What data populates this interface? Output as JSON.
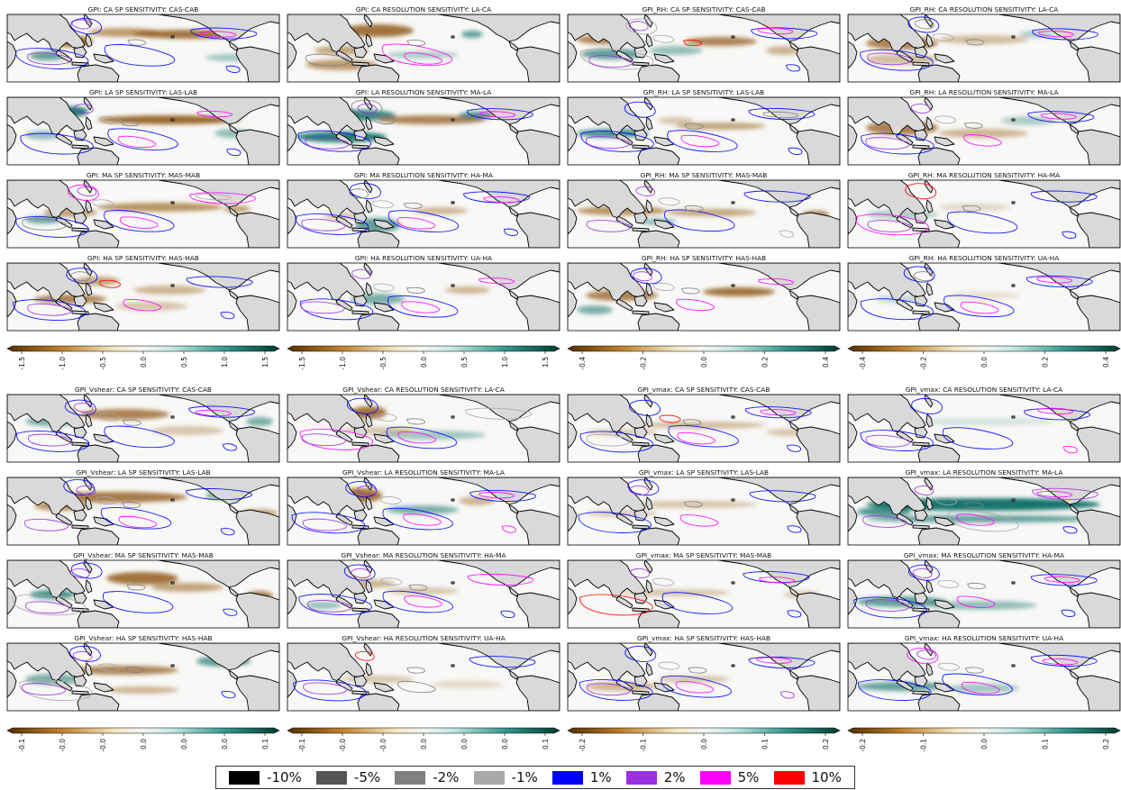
{
  "panel_titles": [
    [
      "GPI: CA SP SENSITIVITY: CAS-CAB",
      "GPI: CA RESOLUTION SENSITIVITY: LA-CA",
      "GPI_RH: CA SP SENSITIVITY: CAS-CAB",
      "GPI_RH: CA RESOLUTION SENSITIVITY: LA-CA"
    ],
    [
      "GPI: LA SP SENSITIVITY: LAS-LAB",
      "GPI: LA RESOLUTION SENSITIVITY: MA-LA",
      "GPI_RH: LA SP SENSITIVITY: LAS-LAB",
      "GPI_RH: LA RESOLUTION SENSITIVITY: MA-LA"
    ],
    [
      "GPI: MA SP SENSITIVITY: MAS-MAB",
      "GPI: MA RESOLUTION SENSITIVITY: HA-MA",
      "GPI_RH: MA SP SENSITIVITY: MAS-MAB",
      "GPI_RH: MA RESOLUTION SENSITIVITY: HA-MA"
    ],
    [
      "GPI: HA SP SENSITIVITY: HAS-HAB",
      "GPI: HA RESOLUTION SENSITIVITY: UA-HA",
      "GPI_RH: HA SP SENSITIVITY: HAS-HAB",
      "GPI_RH: HA RESOLUTION SENSITIVITY: UA-HA"
    ],
    [
      "GPI_Vshear: CA SP SENSITIVITY: CAS-CAB",
      "GPI_Vshear: CA RESOLUTION SENSITIVITY: LA-CA",
      "GPI_vmax: CA SP SENSITIVITY: CAS-CAB",
      "GPI_vmax: CA RESOLUTION SENSITIVITY: LA-CA"
    ],
    [
      "GPI_Vshear: LA SP SENSITIVITY: LAS-LAB",
      "GPI_Vshear: LA RESOLUTION SENSITIVITY: MA-LA",
      "GPI_vmax: LA SP SENSITIVITY: LAS-LAB",
      "GPI_vmax: LA RESOLUTION SENSITIVITY: MA-LA"
    ],
    [
      "GPI_Vshear: MA SP SENSITIVITY: MAS-MAB",
      "GPI_Vshear: MA RESOLUTION SENSITIVITY: HA-MA",
      "GPI_vmax: MA SP SENSITIVITY: MAS-MAB",
      "GPI_vmax: MA RESOLUTION SENSITIVITY: HA-MA"
    ],
    [
      "GPI_Vshear: HA SP SENSITIVITY: HAS-HAB",
      "GPI_Vshear: HA RESOLUTION SENSITIVITY: UA-HA",
      "GPI_vmax: HA SP SENSITIVITY: HAS-HAB",
      "GPI_vmax: HA RESOLUTION SENSITIVITY: UA-HA"
    ]
  ],
  "colorbars": [
    [
      "-1.5",
      "-1.0",
      "-0.5",
      "0.0",
      "0.5",
      "1.0",
      "1.5"
    ],
    [
      "-1.5",
      "-1.0",
      "-0.5",
      "0.0",
      "0.5",
      "1.0",
      "1.5"
    ],
    [
      "-0.4",
      "-0.2",
      "0.0",
      "0.2",
      "0.4"
    ],
    [
      "-0.4",
      "-0.2",
      "0.0",
      "0.2",
      "0.4"
    ],
    [
      "-0.1",
      "-0.0",
      "-0.0",
      "0.0",
      "0.0",
      "0.0",
      "0.1"
    ],
    [
      "-0.1",
      "-0.0",
      "-0.0",
      "0.0",
      "0.0",
      "0.0",
      "0.1"
    ],
    [
      "-0.2",
      "-0.1",
      "0.0",
      "0.1",
      "0.2"
    ],
    [
      "-0.2",
      "-0.1",
      "0.0",
      "0.1",
      "0.2"
    ]
  ],
  "colormap": {
    "negative": "#8c510a",
    "mid": "#f5f5f5",
    "positive": "#01665e"
  },
  "land_color": "#d9d9d9",
  "contour_legend": [
    {
      "label": "-10%",
      "color": "#000000"
    },
    {
      "label": "-5%",
      "color": "#555555"
    },
    {
      "label": "-2%",
      "color": "#808080"
    },
    {
      "label": "-1%",
      "color": "#a9a9a9"
    },
    {
      "label": "1%",
      "color": "#0000ff"
    },
    {
      "label": "2%",
      "color": "#9b30e0"
    },
    {
      "label": "5%",
      "color": "#ff00ff"
    },
    {
      "label": "10%",
      "color": "#ff0000"
    }
  ]
}
